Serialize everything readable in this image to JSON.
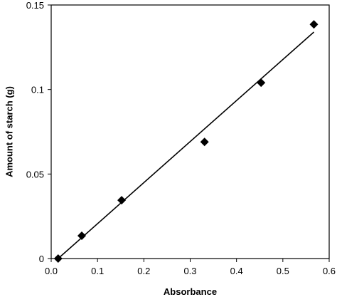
{
  "chart_data": {
    "type": "scatter",
    "title": "",
    "xlabel": "Absorbance",
    "ylabel": "Amount of starch (g)",
    "xlim": [
      0,
      0.6
    ],
    "ylim": [
      0,
      0.15
    ],
    "x_ticks": [
      0,
      0.1,
      0.2,
      0.3,
      0.4,
      0.5,
      0.6
    ],
    "y_ticks": [
      0,
      0.05,
      0.1,
      0.15
    ],
    "x_tick_labels": [
      "0.0",
      "0.1",
      "0.2",
      "0.3",
      "0.4",
      "0.5",
      "0.6"
    ],
    "y_tick_labels": [
      "0",
      "0.05",
      "0.1",
      "0.15"
    ],
    "grid": false,
    "legend": "none",
    "marker": "diamond",
    "marker_color": "#000000",
    "series": [
      {
        "points": [
          {
            "x": 0.015,
            "y": 0.0
          },
          {
            "x": 0.066,
            "y": 0.0135
          },
          {
            "x": 0.152,
            "y": 0.0345
          },
          {
            "x": 0.331,
            "y": 0.069
          },
          {
            "x": 0.453,
            "y": 0.104
          },
          {
            "x": 0.567,
            "y": 0.1385
          }
        ]
      }
    ],
    "trendline": {
      "type": "linear",
      "from": {
        "x": 0.015,
        "y": 0.0
      },
      "to": {
        "x": 0.567,
        "y": 0.134
      }
    }
  }
}
